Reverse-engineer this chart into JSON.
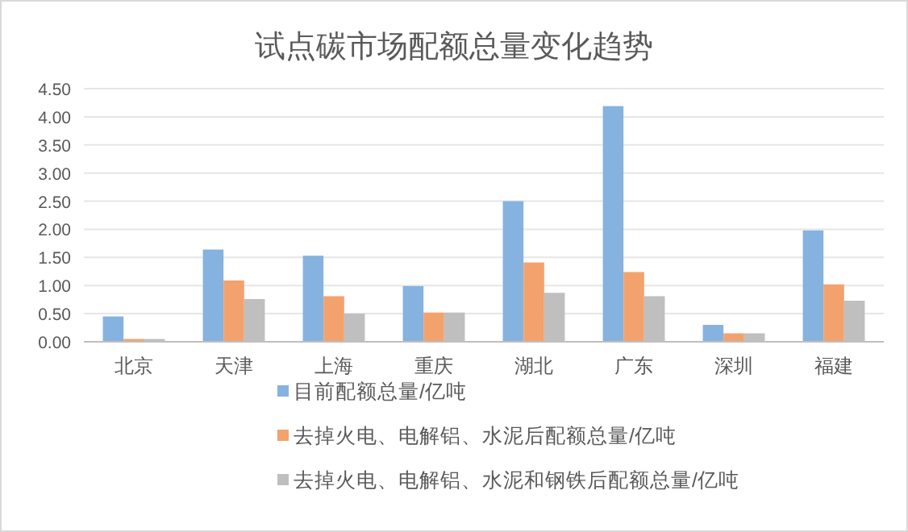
{
  "chart_data": {
    "type": "bar",
    "title": "试点碳市场配额总量变化趋势",
    "categories": [
      "北京",
      "天津",
      "上海",
      "重庆",
      "湖北",
      "广东",
      "深圳",
      "福建"
    ],
    "series": [
      {
        "name": "目前配额总量/亿吨",
        "color": "#86b2df",
        "values": [
          0.45,
          1.64,
          1.53,
          0.99,
          2.5,
          4.19,
          0.3,
          1.98
        ]
      },
      {
        "name": "去掉火电、电解铝、水泥后配额总量/亿吨",
        "color": "#f3a26e",
        "values": [
          0.05,
          1.09,
          0.81,
          0.52,
          1.41,
          1.24,
          0.15,
          1.02
        ]
      },
      {
        "name": "去掉火电、电解铝、水泥和钢铁后配额总量/亿吨",
        "color": "#bfbfbf",
        "values": [
          0.05,
          0.76,
          0.5,
          0.52,
          0.87,
          0.81,
          0.15,
          0.73
        ]
      }
    ],
    "ylim": [
      0,
      4.5
    ],
    "yticks": [
      {
        "value": 0,
        "label": "0.00"
      },
      {
        "value": 0.5,
        "label": "0.50"
      },
      {
        "value": 1,
        "label": "1.00"
      },
      {
        "value": 1.5,
        "label": "1.50"
      },
      {
        "value": 2,
        "label": "2.00"
      },
      {
        "value": 2.5,
        "label": "2.50"
      },
      {
        "value": 3,
        "label": "3.00"
      },
      {
        "value": 3.5,
        "label": "3.50"
      },
      {
        "value": 4,
        "label": "4.00"
      },
      {
        "value": 4.5,
        "label": "4.50"
      }
    ],
    "grid": "y",
    "legend": "bottom"
  }
}
